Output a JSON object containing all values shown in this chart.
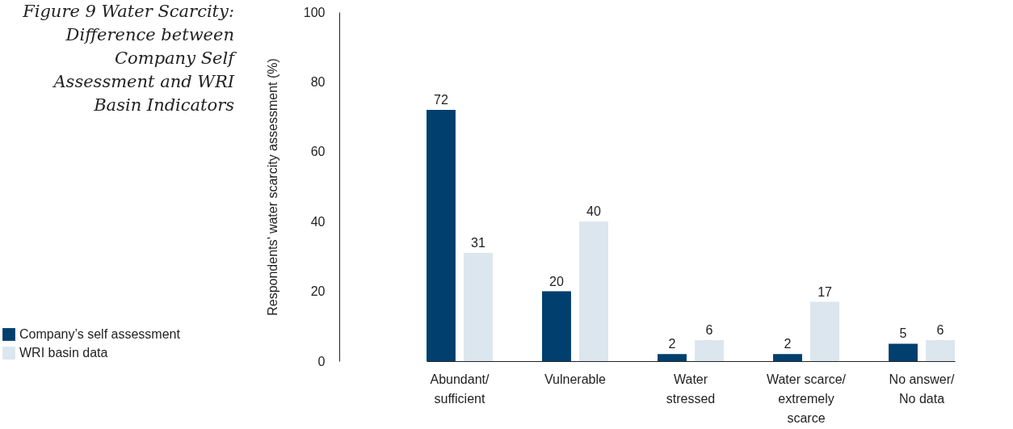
{
  "chart_data": {
    "type": "bar",
    "title": "Figure 9 Water Scarcity: Difference between Company Self Assessment and WRI Basin Indicators",
    "ylabel": "Respondents’ water scarcity assessment (%)",
    "categories": [
      "Abundant/\nsufficient",
      "Vulnerable",
      "Water\nstressed",
      "Water scarce/\nextremely\nscarce",
      "No answer/\nNo data"
    ],
    "series": [
      {
        "name": "Company’s self assessment",
        "color": "#003f6e",
        "values": [
          72,
          20,
          2,
          2,
          5
        ]
      },
      {
        "name": "WRI basin data",
        "color": "#dce6ee",
        "values": [
          31,
          40,
          6,
          17,
          6
        ]
      }
    ],
    "ylim": [
      0,
      100
    ],
    "yticks": [
      0,
      20,
      40,
      60,
      80,
      100
    ],
    "grid": false,
    "legend": "left",
    "data_labels": true
  }
}
